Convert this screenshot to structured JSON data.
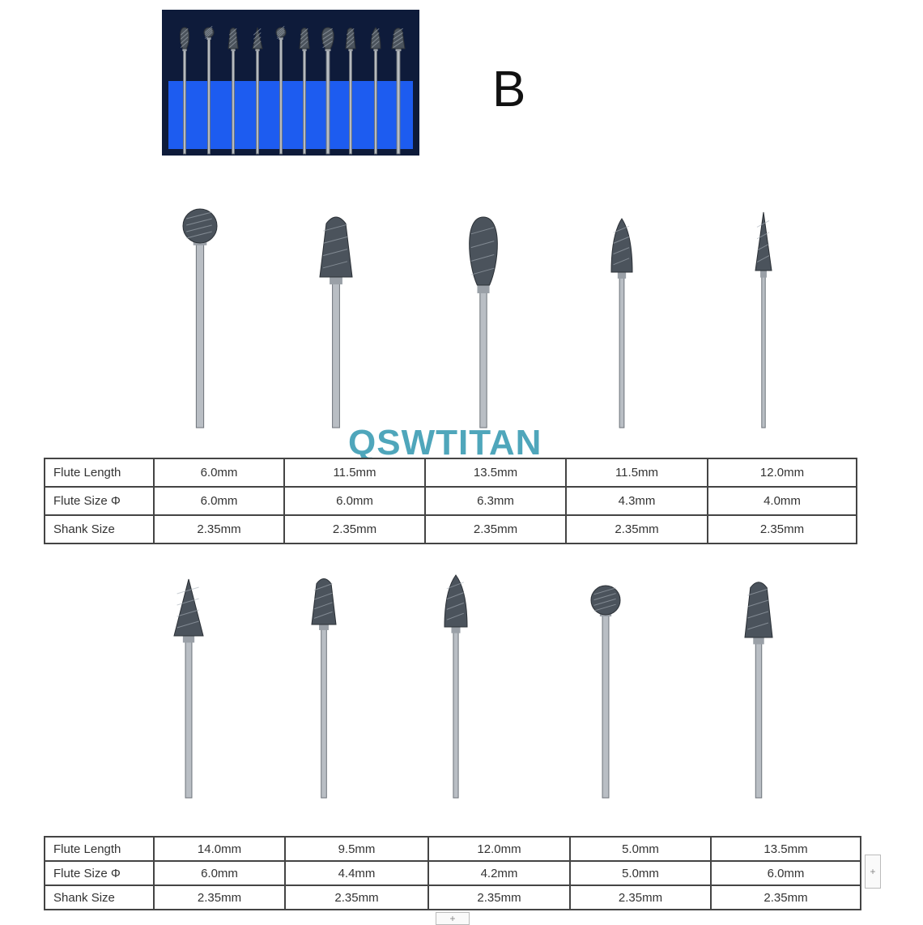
{
  "kit_label": "B",
  "watermark": "QSWTITAN",
  "row_labels": [
    "Flute Length",
    "Flute Size Φ",
    "Shank Size"
  ],
  "table1": {
    "flute_length": [
      "6.0mm",
      "11.5mm",
      "13.5mm",
      "11.5mm",
      "12.0mm"
    ],
    "flute_size": [
      "6.0mm",
      "6.0mm",
      "6.3mm",
      "4.3mm",
      "4.0mm"
    ],
    "shank_size": [
      "2.35mm",
      "2.35mm",
      "2.35mm",
      "2.35mm",
      "2.35mm"
    ]
  },
  "table2": {
    "flute_length": [
      "14.0mm",
      "9.5mm",
      "12.0mm",
      "5.0mm",
      "13.5mm"
    ],
    "flute_size": [
      "6.0mm",
      "4.4mm",
      "4.2mm",
      "5.0mm",
      "6.0mm"
    ],
    "shank_size": [
      "2.35mm",
      "2.35mm",
      "2.35mm",
      "2.35mm",
      "2.35mm"
    ]
  },
  "burr_shapes_top": [
    "ball",
    "tree-round",
    "flame",
    "tree-pointed",
    "cone-pointed"
  ],
  "burr_shapes_bottom": [
    "cone-pointed",
    "tree-round",
    "tree-pointed",
    "ball",
    "tree-round"
  ],
  "colors": {
    "kit_foam": "#1d5cf0",
    "watermark": "#3d9db4"
  }
}
